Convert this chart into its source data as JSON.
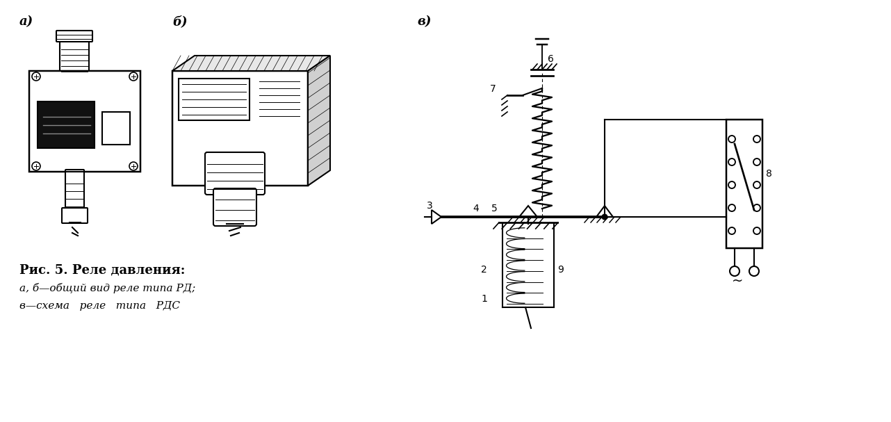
{
  "background_color": "#ffffff",
  "text_caption_title": "Рис. 5. Реле давления:",
  "text_caption_line1": "а, б—общий вид реле типа РД;",
  "text_caption_line2": "в—схема   реле   типа   РДС",
  "label_a": "а)",
  "label_b": "б)",
  "label_v": "в)",
  "line_color": "#000000"
}
